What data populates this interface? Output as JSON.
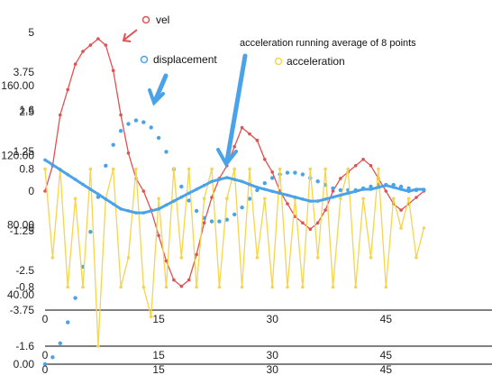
{
  "chart_data": {
    "type": "line",
    "title": "",
    "legend": [
      "vel",
      "displacement",
      "acceleration"
    ],
    "annotation": "acceleration running average of 8 points",
    "x_ticks": [
      "0",
      "15",
      "30",
      "45"
    ],
    "xlim": [
      0,
      54
    ],
    "axes": {
      "vel": {
        "ylim": [
          -3.75,
          5
        ],
        "ticks": [
          "5",
          "3.75",
          "2.5",
          "1.25",
          "0",
          "-1.25",
          "-2.5",
          "-3.75"
        ]
      },
      "acceleration": {
        "ylim": [
          -1.6,
          1.6
        ],
        "ticks": [
          "1.6",
          "0.8",
          "0",
          "-0.8",
          "-1.6"
        ]
      },
      "displacement": {
        "ylim": [
          0,
          160
        ],
        "ticks": [
          "160.00",
          "120.00",
          "80.00",
          "40.00",
          "0.00"
        ]
      }
    },
    "series": [
      {
        "name": "vel",
        "color": "#e05252",
        "x": [
          0,
          1,
          2,
          3,
          4,
          5,
          6,
          7,
          8,
          9,
          10,
          11,
          12,
          13,
          14,
          15,
          16,
          17,
          18,
          19,
          20,
          21,
          22,
          23,
          24,
          25,
          26,
          27,
          28,
          29,
          30,
          31,
          32,
          33,
          34,
          35,
          36,
          37,
          38,
          39,
          40,
          41,
          42,
          43,
          44,
          45,
          46,
          47,
          48,
          49,
          50
        ],
        "values": [
          0,
          0.8,
          2.4,
          3.2,
          4.0,
          4.4,
          4.6,
          4.8,
          4.6,
          3.8,
          2.4,
          1.2,
          0.4,
          0.0,
          -0.6,
          -1.4,
          -2.2,
          -2.8,
          -3.0,
          -2.8,
          -2.0,
          -1.0,
          -0.2,
          0.4,
          0.8,
          1.4,
          2.0,
          1.8,
          1.6,
          1.0,
          0.6,
          0.0,
          -0.4,
          -0.8,
          -1.0,
          -1.2,
          -1.0,
          -0.6,
          0.0,
          0.4,
          0.6,
          0.8,
          1.0,
          0.8,
          0.4,
          0.0,
          -0.4,
          -0.6,
          -0.4,
          -0.2,
          0.0
        ]
      },
      {
        "name": "displacement",
        "color": "#4aa3e8",
        "x": [
          0,
          1,
          2,
          3,
          4,
          5,
          6,
          7,
          8,
          9,
          10,
          11,
          12,
          13,
          14,
          15,
          16,
          17,
          18,
          19,
          20,
          21,
          22,
          23,
          24,
          25,
          26,
          27,
          28,
          29,
          30,
          31,
          32,
          33,
          34,
          35,
          36,
          37,
          38,
          39,
          40,
          41,
          42,
          43,
          44,
          45,
          46,
          47,
          48,
          49,
          50
        ],
        "values": [
          0,
          4,
          12,
          24,
          38,
          56,
          76,
          96,
          114,
          126,
          134,
          138,
          140,
          139,
          136,
          130,
          122,
          112,
          102,
          94,
          88,
          84,
          82,
          82,
          83,
          86,
          90,
          95,
          100,
          104,
          107,
          109,
          110,
          110,
          109,
          107,
          105,
          103,
          101,
          100,
          100,
          100,
          101,
          102,
          103,
          103,
          103,
          102,
          101,
          100,
          100
        ]
      },
      {
        "name": "acceleration",
        "color": "#f5d44e",
        "x": [
          0,
          1,
          2,
          3,
          4,
          5,
          6,
          7,
          8,
          9,
          10,
          11,
          12,
          13,
          14,
          15,
          16,
          17,
          18,
          19,
          20,
          21,
          22,
          23,
          24,
          25,
          26,
          27,
          28,
          29,
          30,
          31,
          32,
          33,
          34,
          35,
          36,
          37,
          38,
          39,
          40,
          41,
          42,
          43,
          44,
          45,
          46,
          47,
          48,
          49,
          50
        ],
        "values": [
          0.8,
          -0.4,
          0.8,
          -0.8,
          0.4,
          -0.8,
          0.8,
          -1.6,
          0.4,
          0.8,
          -0.8,
          -0.4,
          0.8,
          -0.8,
          -1.2,
          0.4,
          -0.8,
          0.8,
          -0.4,
          0.8,
          -0.8,
          0.4,
          0.8,
          -0.8,
          0.4,
          0.8,
          -0.8,
          0.8,
          -0.4,
          0.4,
          -0.8,
          0.8,
          -0.8,
          0.4,
          -0.8,
          0.8,
          -0.4,
          0.8,
          -0.8,
          0.4,
          0.8,
          -0.8,
          0.4,
          -0.4,
          0.8,
          -0.8,
          0.4,
          0.0,
          0.4,
          -0.4,
          0.0
        ]
      },
      {
        "name": "acceleration running average of 8 points",
        "color": "#4aa3e8",
        "x": [
          0,
          1,
          2,
          3,
          4,
          5,
          6,
          7,
          8,
          9,
          10,
          11,
          12,
          13,
          14,
          15,
          16,
          17,
          18,
          19,
          20,
          21,
          22,
          23,
          24,
          25,
          26,
          27,
          28,
          29,
          30,
          31,
          32,
          33,
          34,
          35,
          36,
          37,
          38,
          39,
          40,
          41,
          42,
          43,
          44,
          45,
          46,
          47,
          48,
          49,
          50
        ],
        "values": [
          0.3,
          0.25,
          0.2,
          0.15,
          0.1,
          0.05,
          0.0,
          -0.05,
          -0.1,
          -0.15,
          -0.2,
          -0.22,
          -0.24,
          -0.24,
          -0.22,
          -0.2,
          -0.16,
          -0.12,
          -0.08,
          -0.04,
          0.0,
          0.04,
          0.08,
          0.1,
          0.12,
          0.1,
          0.08,
          0.05,
          0.02,
          0.0,
          -0.02,
          -0.04,
          -0.06,
          -0.08,
          -0.1,
          -0.12,
          -0.12,
          -0.1,
          -0.08,
          -0.06,
          -0.04,
          -0.02,
          0.0,
          0.0,
          0.02,
          0.04,
          0.02,
          0.0,
          -0.02,
          0.0,
          0.0
        ]
      }
    ]
  }
}
